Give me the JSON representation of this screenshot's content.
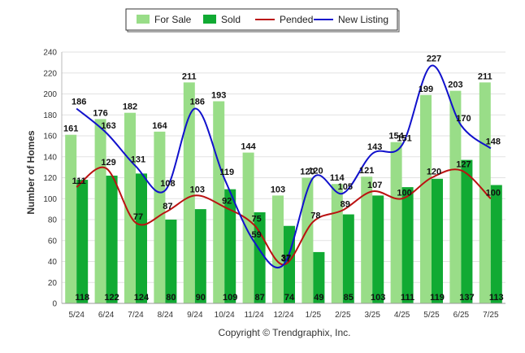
{
  "chart_data": {
    "type": "bar",
    "categories": [
      "5/24",
      "6/24",
      "7/24",
      "8/24",
      "9/24",
      "10/24",
      "11/24",
      "12/24",
      "1/25",
      "2/25",
      "3/25",
      "4/25",
      "5/25",
      "6/25",
      "7/25"
    ],
    "series": [
      {
        "name": "For Sale",
        "type": "bar",
        "color": "#99dd88",
        "values": [
          161,
          176,
          182,
          164,
          211,
          193,
          144,
          103,
          120,
          114,
          121,
          154,
          199,
          203,
          211
        ]
      },
      {
        "name": "Sold",
        "type": "bar",
        "color": "#11aa33",
        "values": [
          118,
          122,
          124,
          80,
          90,
          109,
          87,
          74,
          49,
          85,
          103,
          111,
          119,
          137,
          113
        ]
      },
      {
        "name": "Pended",
        "type": "line",
        "color": "#bb1111",
        "values": [
          111,
          129,
          77,
          87,
          103,
          92,
          75,
          37,
          78,
          89,
          107,
          100,
          120,
          127,
          100
        ]
      },
      {
        "name": "New Listing",
        "type": "line",
        "color": "#1111cc",
        "values": [
          186,
          163,
          131,
          108,
          186,
          119,
          59,
          37,
          120,
          105,
          143,
          151,
          227,
          170,
          148
        ]
      }
    ],
    "ylabel": "Number of Homes",
    "xlabel": "",
    "ylim": [
      0,
      240
    ],
    "yticks": [
      0,
      20,
      40,
      60,
      80,
      100,
      120,
      140,
      160,
      180,
      200,
      220,
      240
    ],
    "grid": true,
    "legend_position": "top-center",
    "copyright": "Copyright © Trendgraphix, Inc."
  }
}
